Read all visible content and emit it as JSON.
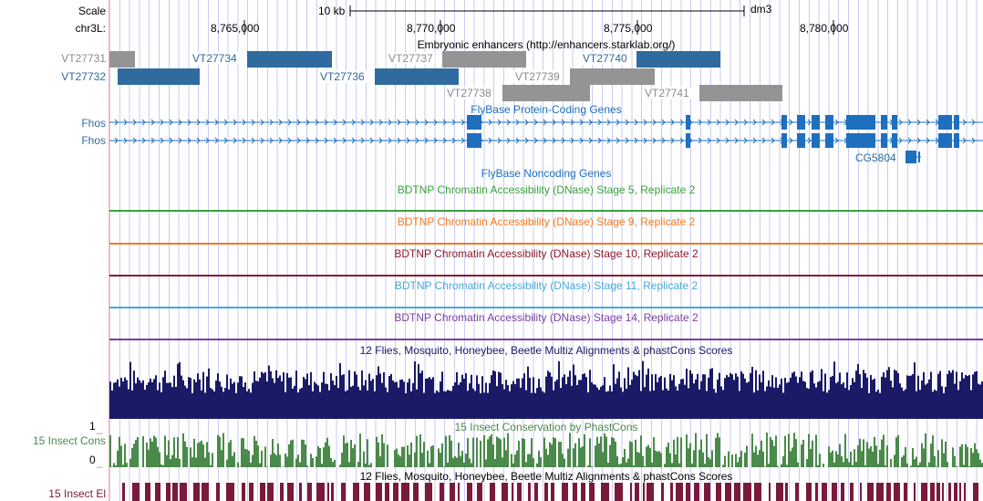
{
  "browser": {
    "scale_label": "Scale",
    "scale_text": "10 kb",
    "assembly": "dm3",
    "chrom_label": "chr3L:",
    "positions": [
      "8,765,000",
      "8,770,000",
      "8,775,000",
      "8,780,000"
    ]
  },
  "tracks": {
    "enhancers": {
      "title": "Embryonic enhancers (http://enhancers.starklab.org/)",
      "items": [
        "VT27731",
        "VT27732",
        "VT27734",
        "VT27736",
        "VT27737",
        "VT27738",
        "VT27739",
        "VT27740",
        "VT27741"
      ]
    },
    "coding": {
      "title": "FlyBase Protein-Coding Genes",
      "gene1": "Fhos",
      "gene2": "Fhos",
      "gene3": "CG5804"
    },
    "noncoding": {
      "title": "FlyBase Noncoding Genes"
    },
    "dnase": [
      "BDTNP Chromatin Accessibility (DNase) Stage 5, Replicate 2",
      "BDTNP Chromatin Accessibility (DNase) Stage 9, Replicate 2",
      "BDTNP Chromatin Accessibility (DNase) Stage 10, Replicate 2",
      "BDTNP Chromatin Accessibility (DNase) Stage 11, Replicate 2",
      "BDTNP Chromatin Accessibility (DNase) Stage 14, Replicate 2"
    ],
    "multiz_title": "12 Flies, Mosquito, Honeybee, Beetle Multiz Alignments & phastCons Scores",
    "cons": {
      "title": "15 Insect Conservation by PhastCons",
      "label": "15 Insect Cons",
      "ymax": "1",
      "ymin": "0"
    },
    "elements": {
      "title": "12 Flies, Mosquito, Honeybee, Beetle Multiz Alignments & phastCons Scores",
      "label": "15 Insect El"
    }
  },
  "colors": {
    "enhancer_blue": "#2f6b9e",
    "enhancer_gray": "#949494",
    "gene_blue": "#1f6fbf",
    "stage5": "#3aa23a",
    "stage9": "#f07a20",
    "stage10": "#8b1a2a",
    "stage11": "#49a9d6",
    "stage14": "#7a3fa0",
    "multiz": "#1a1a66",
    "cons": "#4a8a4a",
    "elements": "#7a1a3a"
  }
}
